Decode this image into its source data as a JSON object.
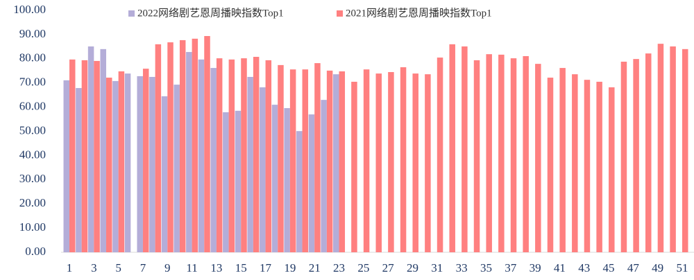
{
  "chart_data": {
    "type": "bar",
    "categories": [
      1,
      null,
      3,
      null,
      5,
      null,
      7,
      null,
      9,
      null,
      11,
      null,
      13,
      null,
      15,
      null,
      17,
      null,
      19,
      null,
      21,
      null,
      23,
      null,
      25,
      null,
      27,
      null,
      29,
      null,
      31,
      null,
      33,
      null,
      35,
      null,
      37,
      null,
      39,
      null,
      41,
      null,
      43,
      null,
      45,
      null,
      47,
      null,
      49,
      null,
      51,
      null
    ],
    "series": [
      {
        "name": "2022网络剧艺恩周播映指数Top1",
        "color": "#b4add8",
        "values": [
          71.1,
          67.9,
          85.1,
          84.0,
          70.8,
          73.9,
          72.8,
          72.5,
          64.5,
          69.3,
          82.8,
          79.7,
          76.2,
          57.9,
          58.5,
          72.5,
          68.2,
          61.0,
          59.6,
          50.1,
          57.0,
          63.0,
          73.6,
          null,
          null,
          null,
          null,
          null,
          null,
          null,
          null,
          null,
          null,
          null,
          null,
          null,
          null,
          null,
          null,
          null,
          null,
          null,
          null,
          null,
          null,
          null,
          null,
          null,
          null,
          null,
          null,
          null
        ]
      },
      {
        "name": "2021网络剧艺恩周播映指数Top1",
        "color": "#ff8080",
        "values": [
          79.7,
          79.4,
          79.1,
          72.2,
          74.8,
          null,
          75.9,
          86.0,
          86.8,
          87.7,
          88.3,
          89.4,
          80.2,
          79.7,
          80.2,
          80.8,
          79.4,
          77.4,
          75.6,
          75.6,
          78.2,
          75.1,
          74.8,
          70.5,
          75.6,
          73.9,
          74.5,
          76.5,
          73.9,
          73.6,
          80.5,
          86.0,
          85.1,
          79.4,
          81.9,
          81.7,
          80.2,
          81.1,
          77.9,
          72.2,
          76.2,
          73.6,
          71.3,
          70.5,
          68.2,
          78.8,
          79.9,
          82.2,
          86.2,
          85.1,
          84.0,
          82.2
        ]
      }
    ],
    "ylim": [
      0,
      100
    ],
    "yticks": [
      {
        "value": 0,
        "label": "0.00"
      },
      {
        "value": 10,
        "label": "10.00"
      },
      {
        "value": 20,
        "label": "20.00"
      },
      {
        "value": 30,
        "label": "30.00"
      },
      {
        "value": 40,
        "label": "40.00"
      },
      {
        "value": 50,
        "label": "50.00"
      },
      {
        "value": 60,
        "label": "60.00"
      },
      {
        "value": 70,
        "label": "70.00"
      },
      {
        "value": 80,
        "label": "80.00"
      },
      {
        "value": 90,
        "label": "90.00"
      },
      {
        "value": 100,
        "label": "100.00"
      }
    ],
    "grid": false,
    "legend": "top"
  }
}
